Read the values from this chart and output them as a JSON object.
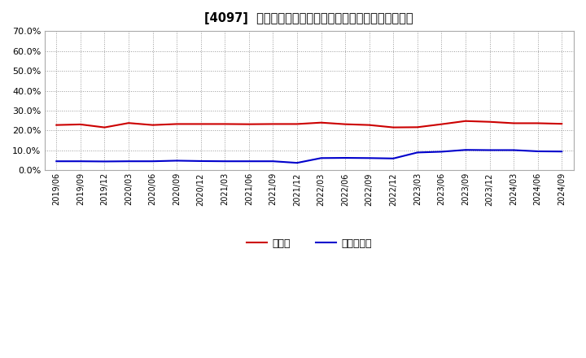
{
  "title": "[4097]  現領金、有利子負債の総資産に対する比率の推移",
  "x_labels": [
    "2019/06",
    "2019/09",
    "2019/12",
    "2020/03",
    "2020/06",
    "2020/09",
    "2020/12",
    "2021/03",
    "2021/06",
    "2021/09",
    "2021/12",
    "2022/03",
    "2022/06",
    "2022/09",
    "2022/12",
    "2023/03",
    "2023/06",
    "2023/09",
    "2023/12",
    "2024/03",
    "2024/06",
    "2024/09"
  ],
  "genkin": [
    0.228,
    0.231,
    0.216,
    0.238,
    0.228,
    0.233,
    0.233,
    0.233,
    0.232,
    0.233,
    0.233,
    0.24,
    0.232,
    0.228,
    0.216,
    0.217,
    0.232,
    0.248,
    0.244,
    0.237,
    0.237,
    0.234
  ],
  "yurishifusai": [
    0.046,
    0.046,
    0.045,
    0.046,
    0.046,
    0.049,
    0.047,
    0.046,
    0.046,
    0.046,
    0.038,
    0.062,
    0.063,
    0.062,
    0.06,
    0.09,
    0.094,
    0.103,
    0.102,
    0.102,
    0.096,
    0.095
  ],
  "genkin_color": "#cc0000",
  "yurishifusai_color": "#0000cc",
  "bg_color": "#ffffff",
  "grid_color": "#aaaaaa",
  "ylim": [
    0.0,
    0.7
  ],
  "yticks": [
    0.0,
    0.1,
    0.2,
    0.3,
    0.4,
    0.5,
    0.6,
    0.7
  ],
  "legend_genkin": "現領金",
  "legend_yurishifusai": "有利子負債"
}
